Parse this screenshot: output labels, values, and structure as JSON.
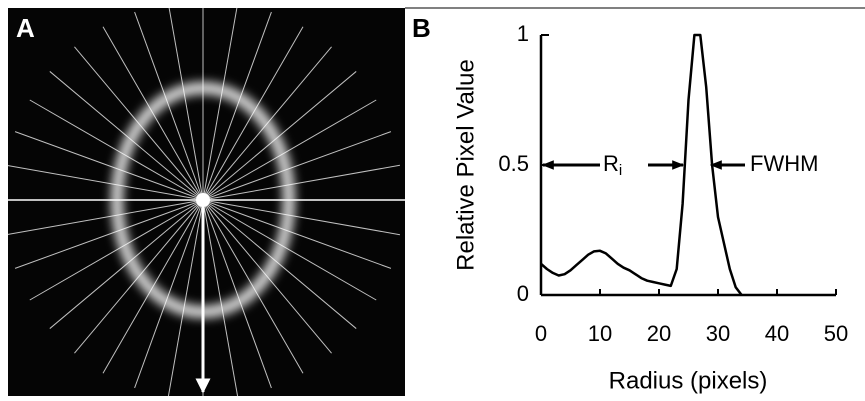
{
  "panel_labels": [
    "A",
    "B"
  ],
  "chart_data": {
    "type": "line",
    "xlabel": "Radius  (pixels)",
    "ylabel": "Relative Pixel Value",
    "x": [
      0,
      1,
      2,
      3,
      4,
      5,
      6,
      7,
      8,
      9,
      10,
      11,
      12,
      13,
      14,
      15,
      16,
      17,
      18,
      19,
      20,
      21,
      22,
      23,
      24,
      25,
      26,
      27,
      28,
      29,
      30,
      31,
      32,
      33,
      34
    ],
    "series": [
      {
        "color": "#000000",
        "values": [
          0.12,
          0.1,
          0.085,
          0.075,
          0.08,
          0.095,
          0.115,
          0.135,
          0.155,
          0.168,
          0.17,
          0.16,
          0.14,
          0.12,
          0.105,
          0.095,
          0.08,
          0.065,
          0.055,
          0.05,
          0.045,
          0.04,
          0.035,
          0.1,
          0.35,
          0.75,
          1.0,
          1.0,
          0.8,
          0.5,
          0.3,
          0.2,
          0.1,
          0.03,
          0
        ]
      }
    ],
    "xlim": [
      0,
      50
    ],
    "ylim": [
      0,
      1
    ],
    "xticks": [
      0,
      10,
      20,
      30,
      40,
      50
    ],
    "yticks": [
      0,
      0.5,
      1
    ],
    "grid": false,
    "annotations": [
      {
        "text": "R",
        "sub": "i"
      },
      {
        "text": "FWHM"
      }
    ]
  }
}
